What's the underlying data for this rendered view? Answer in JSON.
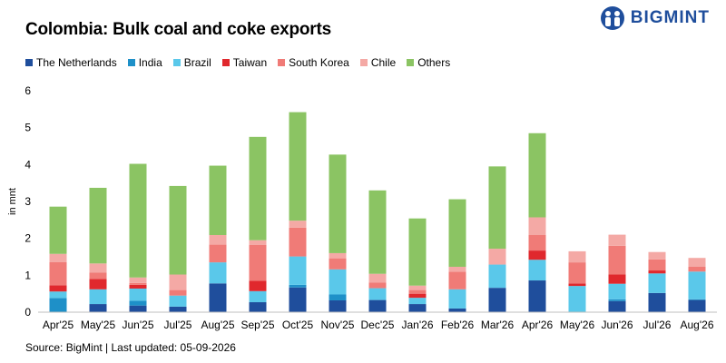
{
  "chart_data": {
    "type": "bar",
    "stacked": true,
    "title": "Colombia: Bulk coal and coke exports",
    "ylabel": "in mnt",
    "xlabel": "",
    "ylim": [
      0,
      6
    ],
    "yticks": [
      0,
      1,
      2,
      3,
      4,
      5,
      6
    ],
    "grid": false,
    "legend_position": "top",
    "categories": [
      "Apr'25",
      "May'25",
      "Jun'25",
      "Jul'25",
      "Aug'25",
      "Sep'25",
      "Oct'25",
      "Nov'25",
      "Dec'25",
      "Jan'26",
      "Feb'26",
      "Mar'26",
      "Apr'26",
      "May'26",
      "Jun'26",
      "Jul'26",
      "Aug'26"
    ],
    "series": [
      {
        "name": "The Netherlands",
        "color": "#1f4e9c",
        "values": [
          0,
          0.22,
          0.18,
          0.15,
          0.78,
          0.27,
          0.67,
          0.32,
          0.33,
          0.22,
          0.1,
          0.66,
          0.86,
          0,
          0.3,
          0.52,
          0.33
        ]
      },
      {
        "name": "India",
        "color": "#1e90c8",
        "values": [
          0.38,
          0,
          0.13,
          0,
          0,
          0,
          0.07,
          0.16,
          0,
          0,
          0,
          0,
          0,
          0,
          0.05,
          0,
          0.02
        ]
      },
      {
        "name": "Brazil",
        "color": "#5ac8ea",
        "values": [
          0.18,
          0.4,
          0.33,
          0.3,
          0.57,
          0.3,
          0.77,
          0.68,
          0.32,
          0.17,
          0.52,
          0.63,
          0.56,
          0.71,
          0.42,
          0.53,
          0.75
        ]
      },
      {
        "name": "Taiwan",
        "color": "#e0282d",
        "values": [
          0.17,
          0.28,
          0.1,
          0,
          0,
          0.28,
          0,
          0,
          0,
          0.11,
          0,
          0,
          0.25,
          0.07,
          0.25,
          0.08,
          0
        ]
      },
      {
        "name": "South Korea",
        "color": "#f07b77",
        "values": [
          0.63,
          0.17,
          0.05,
          0.15,
          0.48,
          0.97,
          0.78,
          0.3,
          0.15,
          0.1,
          0.48,
          0,
          0.42,
          0.57,
          0.78,
          0.3,
          0.13
        ]
      },
      {
        "name": "Chile",
        "color": "#f4a9a5",
        "values": [
          0.22,
          0.25,
          0.15,
          0.42,
          0.26,
          0.13,
          0.19,
          0.14,
          0.24,
          0.12,
          0.13,
          0.43,
          0.48,
          0.3,
          0.3,
          0.2,
          0.24
        ]
      },
      {
        "name": "Others",
        "color": "#8bc463",
        "values": [
          1.28,
          2.05,
          3.08,
          2.4,
          1.88,
          2.8,
          2.94,
          2.67,
          2.26,
          1.82,
          1.83,
          2.23,
          2.28,
          0,
          0,
          0,
          0
        ]
      }
    ]
  },
  "logo": {
    "text": "BIGMINT"
  },
  "footer": {
    "source": "Source: BigMint | Last updated: 05-09-2026"
  }
}
